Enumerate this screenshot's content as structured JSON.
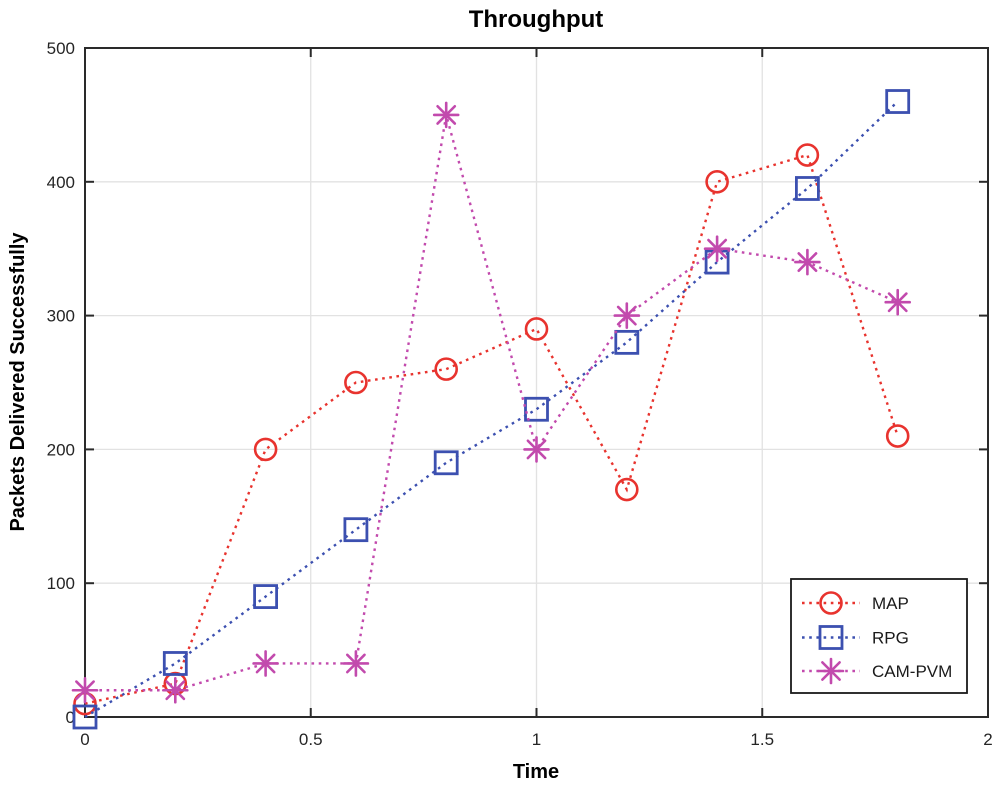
{
  "chart_data": {
    "type": "line",
    "title": "Throughput",
    "xlabel": "Time",
    "ylabel": "Packets Delivered Successfully",
    "xlim": [
      0,
      2
    ],
    "ylim": [
      0,
      500
    ],
    "xticks": [
      0,
      0.5,
      1,
      1.5,
      2
    ],
    "xtick_labels": [
      "0",
      "0.5",
      "1",
      "1.5",
      "2"
    ],
    "yticks": [
      0,
      100,
      200,
      300,
      400,
      500
    ],
    "ytick_labels": [
      "0",
      "100",
      "200",
      "300",
      "400",
      "500"
    ],
    "grid": true,
    "line_style": "dotted",
    "x": [
      0,
      0.2,
      0.4,
      0.6,
      0.8,
      1,
      1.2,
      1.4,
      1.6,
      1.8
    ],
    "series": [
      {
        "name": "MAP",
        "marker": "circle",
        "color": "#e8332e",
        "values": [
          10,
          25,
          200,
          250,
          260,
          290,
          170,
          400,
          420,
          210
        ]
      },
      {
        "name": "RPG",
        "marker": "square",
        "color": "#3c50b0",
        "values": [
          0,
          40,
          90,
          140,
          190,
          230,
          280,
          340,
          395,
          460
        ]
      },
      {
        "name": "CAM-PVM",
        "marker": "asterisk",
        "color": "#c24aad",
        "values": [
          20,
          20,
          40,
          40,
          450,
          200,
          300,
          350,
          340,
          310
        ]
      }
    ],
    "legend": {
      "position": "lower-right",
      "entries": [
        "MAP",
        "RPG",
        "CAM-PVM"
      ]
    }
  },
  "style": {
    "grid_color": "#e2e2e2",
    "frame_color": "#2a2a2a",
    "legend_border_color": "#1a1a1a",
    "legend_bg_color": "#ffffff",
    "background_color": "#ffffff"
  }
}
